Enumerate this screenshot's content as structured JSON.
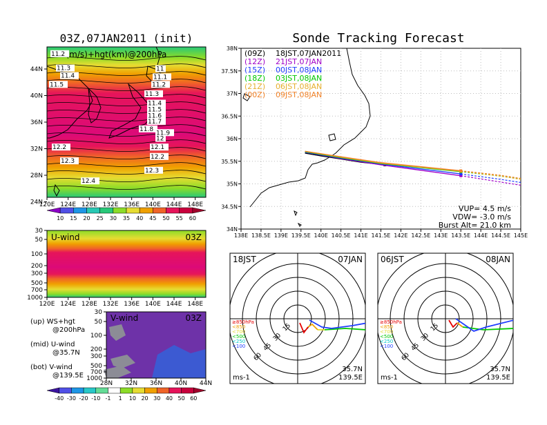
{
  "left": {
    "title": "03Z,07JAN2011 (init)",
    "map_label": "WS(m/s)+hgt(km)@200hPa",
    "lon_ticks": [
      "120E",
      "124E",
      "128E",
      "132E",
      "136E",
      "140E",
      "144E",
      "148E"
    ],
    "lat_ticks": [
      "44N",
      "40N",
      "36N",
      "32N",
      "28N",
      "24N"
    ],
    "ws_colorbar": [
      "10",
      "15",
      "20",
      "25",
      "30",
      "35",
      "40",
      "45",
      "50",
      "55",
      "60"
    ],
    "contours": [
      {
        "label": "11.2",
        "lat": 44.7
      },
      {
        "label": "11.3",
        "lat": 42.4
      },
      {
        "label": "11.4",
        "lat": 41.2
      },
      {
        "label": "11.5",
        "lat": 39.8
      },
      {
        "label": "11",
        "lat": 42.3
      },
      {
        "label": "11.1",
        "lat": 41.0
      },
      {
        "label": "11.2",
        "lat": 39.8
      },
      {
        "label": "11.3",
        "lat": 38.3
      },
      {
        "label": "11.4",
        "lat": 36.8
      },
      {
        "label": "11.5",
        "lat": 35.8
      },
      {
        "label": "11.6",
        "lat": 34.8
      },
      {
        "label": "11.7",
        "lat": 33.9
      },
      {
        "label": "11.8",
        "lat": 32.7
      },
      {
        "label": "11.9",
        "lat": 32.1
      },
      {
        "label": "12",
        "lat": 31.2
      },
      {
        "label": "12.1",
        "lat": 29.8
      },
      {
        "label": "12.2",
        "lat": 28.3
      },
      {
        "label": "12.3",
        "lat": 26.1
      },
      {
        "label": "12.2",
        "lat": 29.8
      },
      {
        "label": "12.3",
        "lat": 27.6
      },
      {
        "label": "12.4",
        "lat": 24.4
      }
    ],
    "uwind": {
      "label": "U-wind",
      "time": "03Z",
      "p_ticks": [
        "30",
        "50",
        "100",
        "200",
        "300",
        "500",
        "700",
        "1000"
      ],
      "lon_ticks": [
        "120E",
        "124E",
        "128E",
        "132E",
        "136E",
        "140E",
        "144E",
        "148E"
      ]
    },
    "vwind": {
      "label": "V-wind",
      "time": "03Z",
      "p_ticks": [
        "30",
        "50",
        "100",
        "200",
        "300",
        "500",
        "700",
        "1000"
      ],
      "lat_ticks": [
        "28N",
        "32N",
        "36N",
        "40N",
        "44N"
      ]
    },
    "desc": {
      "up1": "(up) WS+hgt",
      "up2": "@200hPa",
      "mid1": "(mid) U-wind",
      "mid2": "@35.7N",
      "bot1": "(bot) V-wind",
      "bot2": "@139.5E"
    },
    "wind_colorbar": [
      "-40",
      "-30",
      "-20",
      "-10",
      "-1",
      "1",
      "10",
      "20",
      "30",
      "40",
      "50",
      "60"
    ]
  },
  "right": {
    "title": "Sonde Tracking Forecast",
    "lat_ticks": [
      "38N",
      "37.5N",
      "37N",
      "36.5N",
      "36N",
      "35.5N",
      "35N",
      "34.5N",
      "34N"
    ],
    "lon_ticks": [
      "138E",
      "138.5E",
      "139E",
      "139.5E",
      "140E",
      "140.5E",
      "141E",
      "141.5E",
      "142E",
      "142.5E",
      "143E",
      "143.5E",
      "144E",
      "144.5E",
      "145E"
    ],
    "legend": [
      {
        "utc": "(09Z)",
        "jst": "18JST,07JAN2011",
        "color": "#000000"
      },
      {
        "utc": "(12Z)",
        "jst": "21JST,07JAN",
        "color": "#a000c8"
      },
      {
        "utc": "(15Z)",
        "jst": "00JST,08JAN",
        "color": "#1e3cff"
      },
      {
        "utc": "(18Z)",
        "jst": "03JST,08JAN",
        "color": "#00c800"
      },
      {
        "utc": "(21Z)",
        "jst": "06JST,08JAN",
        "color": "#e6af2d"
      },
      {
        "utc": "(00Z)",
        "jst": "09JST,08JAN",
        "color": "#f08228"
      }
    ],
    "stats": {
      "vup": "VUP= 4.5 m/s",
      "vdw": "VDW= -3.0 m/s",
      "burst": "Burst Alt= 21.0 km"
    },
    "hodo1": {
      "time": "18JST",
      "date": "07JAN",
      "unit": "ms-1",
      "lat": "35.7N",
      "lon": "139.5E",
      "rings": [
        "15",
        "30",
        "45",
        "60"
      ]
    },
    "hodo2": {
      "time": "06JST",
      "date": "08JAN",
      "unit": "ms-1",
      "lat": "35.7N",
      "lon": "139.5E",
      "rings": [
        "15",
        "30",
        "45",
        "60"
      ]
    },
    "hodo_legend": [
      {
        "label": "≥850hPa",
        "color": "#e60000"
      },
      {
        "label": "<850",
        "color": "#f0a000"
      },
      {
        "label": "<700",
        "color": "#e6dc32"
      },
      {
        "label": "<500",
        "color": "#00c800"
      },
      {
        "label": "<250",
        "color": "#00c8c8"
      },
      {
        "label": "<100",
        "color": "#1e3cff"
      }
    ]
  },
  "chart_data": [
    {
      "type": "heatmap",
      "title": "03Z,07JAN2011 (init)",
      "variable": "WS(m/s)+hgt(km)@200hPa",
      "xlim": [
        120,
        150
      ],
      "ylim": [
        22,
        46
      ],
      "jet_core_lat": 34,
      "colorbar": [
        10,
        15,
        20,
        25,
        30,
        35,
        40,
        45,
        50,
        55,
        60
      ]
    },
    {
      "type": "line",
      "title": "Sonde Tracking Forecast",
      "xlim": [
        138,
        145
      ],
      "ylim": [
        34,
        38
      ],
      "series": [
        {
          "name": "(09Z) 18JST,07JAN2011",
          "x": [
            139.6,
            140.0,
            140.5,
            141.0,
            141.6
          ],
          "y": [
            35.68,
            35.62,
            35.55,
            35.48,
            35.42
          ]
        },
        {
          "name": "(12Z) 21JST,07JAN",
          "x": [
            139.6,
            140.5,
            141.5,
            142.5,
            143.5,
            144.5,
            145.0
          ],
          "y": [
            35.7,
            35.56,
            35.42,
            35.3,
            35.18,
            35.04,
            34.97
          ]
        },
        {
          "name": "(15Z) 00JST,08JAN",
          "x": [
            139.6,
            140.5,
            141.5,
            142.5,
            143.5,
            144.5,
            145.0
          ],
          "y": [
            35.7,
            35.57,
            35.44,
            35.33,
            35.22,
            35.1,
            35.03
          ]
        },
        {
          "name": "(18Z) 03JST,08JAN",
          "x": [
            139.6,
            140.5,
            141.5,
            142.5,
            143.5,
            144.5,
            145.0
          ],
          "y": [
            35.71,
            35.58,
            35.45,
            35.36,
            35.27,
            35.17,
            35.11
          ]
        },
        {
          "name": "(21Z) 06JST,08JAN",
          "x": [
            139.6,
            140.5,
            141.5,
            142.5,
            143.5,
            144.5,
            145.0
          ],
          "y": [
            35.72,
            35.59,
            35.46,
            35.37,
            35.28,
            35.17,
            35.1
          ]
        },
        {
          "name": "(00Z) 09JST,08JAN",
          "x": [
            139.6,
            140.5,
            141.5,
            142.5,
            143.5,
            144.5,
            145.0
          ],
          "y": [
            35.72,
            35.6,
            35.47,
            35.38,
            35.29,
            35.19,
            35.12
          ]
        }
      ]
    }
  ]
}
